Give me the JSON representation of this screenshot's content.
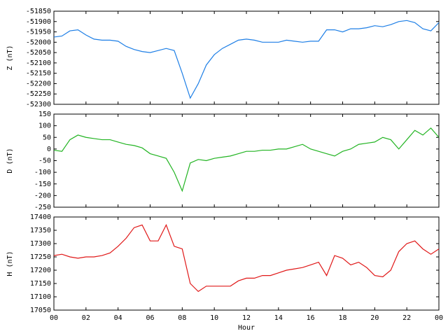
{
  "chart_data": [
    {
      "type": "line",
      "ylabel": "Z (nT)",
      "x": [
        0,
        0.5,
        1,
        1.5,
        2,
        2.5,
        3,
        3.5,
        4,
        4.5,
        5,
        5.5,
        6,
        6.5,
        7,
        7.5,
        8,
        8.5,
        9,
        9.5,
        10,
        10.5,
        11,
        11.5,
        12,
        12.5,
        13,
        13.5,
        14,
        14.5,
        15,
        15.5,
        16,
        16.5,
        17,
        17.5,
        18,
        18.5,
        19,
        19.5,
        20,
        20.5,
        21,
        21.5,
        22,
        22.5,
        23,
        23.5,
        24
      ],
      "xlim": [
        0,
        24
      ],
      "series": [
        {
          "color": "#1e7fe6",
          "values": [
            -51975,
            -51970,
            -51945,
            -51940,
            -51965,
            -51985,
            -51990,
            -51990,
            -51995,
            -52020,
            -52035,
            -52045,
            -52050,
            -52040,
            -52030,
            -52040,
            -52150,
            -52270,
            -52200,
            -52110,
            -52060,
            -52030,
            -52010,
            -51990,
            -51985,
            -51990,
            -52000,
            -52000,
            -52000,
            -51990,
            -51995,
            -52000,
            -51995,
            -51995,
            -51940,
            -51940,
            -51950,
            -51935,
            -51935,
            -51930,
            -51920,
            -51925,
            -51915,
            -51900,
            -51895,
            -51905,
            -51935,
            -51945,
            -51905
          ]
        }
      ],
      "ylim": [
        -52300,
        -51850
      ],
      "yticks": [
        -52300,
        -52250,
        -52200,
        -52150,
        -52100,
        -52050,
        -52000,
        -51950,
        -51900,
        -51850
      ]
    },
    {
      "type": "line",
      "ylabel": "D (nT)",
      "x": [
        0,
        0.5,
        1,
        1.5,
        2,
        2.5,
        3,
        3.5,
        4,
        4.5,
        5,
        5.5,
        6,
        6.5,
        7,
        7.5,
        8,
        8.5,
        9,
        9.5,
        10,
        10.5,
        11,
        11.5,
        12,
        12.5,
        13,
        13.5,
        14,
        14.5,
        15,
        15.5,
        16,
        16.5,
        17,
        17.5,
        18,
        18.5,
        19,
        19.5,
        20,
        20.5,
        21,
        21.5,
        22,
        22.5,
        23,
        23.5,
        24
      ],
      "xlim": [
        0,
        24
      ],
      "series": [
        {
          "color": "#22b422",
          "values": [
            -5,
            -10,
            40,
            60,
            50,
            45,
            40,
            40,
            30,
            20,
            15,
            5,
            -20,
            -30,
            -40,
            -100,
            -180,
            -60,
            -45,
            -50,
            -40,
            -35,
            -30,
            -20,
            -10,
            -10,
            -5,
            -5,
            0,
            0,
            10,
            20,
            0,
            -10,
            -20,
            -30,
            -10,
            0,
            20,
            25,
            30,
            50,
            40,
            0,
            40,
            80,
            60,
            90,
            50
          ]
        }
      ],
      "ylim": [
        -250,
        150
      ],
      "yticks": [
        -250,
        -200,
        -150,
        -100,
        -50,
        0,
        50,
        100,
        150
      ]
    },
    {
      "type": "line",
      "ylabel": "H (nT)",
      "xlabel": "Hour",
      "x": [
        0,
        0.5,
        1,
        1.5,
        2,
        2.5,
        3,
        3.5,
        4,
        4.5,
        5,
        5.5,
        6,
        6.5,
        7,
        7.5,
        8,
        8.5,
        9,
        9.5,
        10,
        10.5,
        11,
        11.5,
        12,
        12.5,
        13,
        13.5,
        14,
        14.5,
        15,
        15.5,
        16,
        16.5,
        17,
        17.5,
        18,
        18.5,
        19,
        19.5,
        20,
        20.5,
        21,
        21.5,
        22,
        22.5,
        23,
        23.5,
        24
      ],
      "xlim": [
        0,
        24
      ],
      "xticks": [
        {
          "value": 0,
          "label": "00"
        },
        {
          "value": 2,
          "label": "02"
        },
        {
          "value": 4,
          "label": "04"
        },
        {
          "value": 6,
          "label": "06"
        },
        {
          "value": 8,
          "label": "08"
        },
        10,
        12,
        14,
        16,
        18,
        20,
        22,
        {
          "value": 24,
          "label": "00"
        }
      ],
      "series": [
        {
          "color": "#e01818",
          "values": [
            17255,
            17260,
            17250,
            17245,
            17250,
            17250,
            17255,
            17265,
            17290,
            17320,
            17360,
            17370,
            17310,
            17310,
            17370,
            17290,
            17280,
            17150,
            17120,
            17140,
            17140,
            17140,
            17140,
            17160,
            17170,
            17170,
            17180,
            17180,
            17190,
            17200,
            17205,
            17210,
            17220,
            17230,
            17180,
            17255,
            17245,
            17220,
            17230,
            17210,
            17180,
            17175,
            17200,
            17270,
            17300,
            17310,
            17280,
            17260,
            17280
          ]
        }
      ],
      "ylim": [
        17050,
        17400
      ],
      "yticks": [
        17050,
        17100,
        17150,
        17200,
        17250,
        17300,
        17350,
        17400
      ]
    }
  ]
}
